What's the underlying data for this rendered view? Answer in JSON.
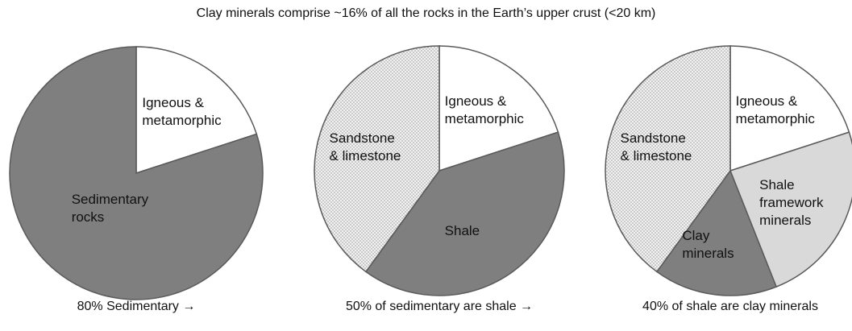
{
  "title": "Clay minerals comprise ~16% of all the rocks in the Earth’s upper crust (<20 km)",
  "chart_data": [
    {
      "type": "pie",
      "labels": [
        "Igneous & metamorphic",
        "Sedimentary rocks"
      ],
      "values": [
        20,
        80
      ],
      "colors": [
        "#ffffff",
        "#7f7f7f"
      ],
      "patterns": [
        false,
        false
      ],
      "caption": "80% Sedimentary →"
    },
    {
      "type": "pie",
      "labels": [
        "Igneous & metamorphic",
        "Shale",
        "Sandstone & limestone"
      ],
      "values": [
        20,
        40,
        40
      ],
      "colors": [
        "#ffffff",
        "#7f7f7f",
        "#e6e6e6"
      ],
      "patterns": [
        false,
        false,
        true
      ],
      "caption": "50% of sedimentary are shale →"
    },
    {
      "type": "pie",
      "labels": [
        "Igneous & metamorphic",
        "Shale framework minerals",
        "Clay minerals",
        "Sandstone & limestone"
      ],
      "values": [
        20,
        24,
        16,
        40
      ],
      "colors": [
        "#ffffff",
        "#d9d9d9",
        "#7f7f7f",
        "#e6e6e6"
      ],
      "patterns": [
        false,
        false,
        false,
        true
      ],
      "caption": "40% of shale are clay minerals"
    }
  ]
}
